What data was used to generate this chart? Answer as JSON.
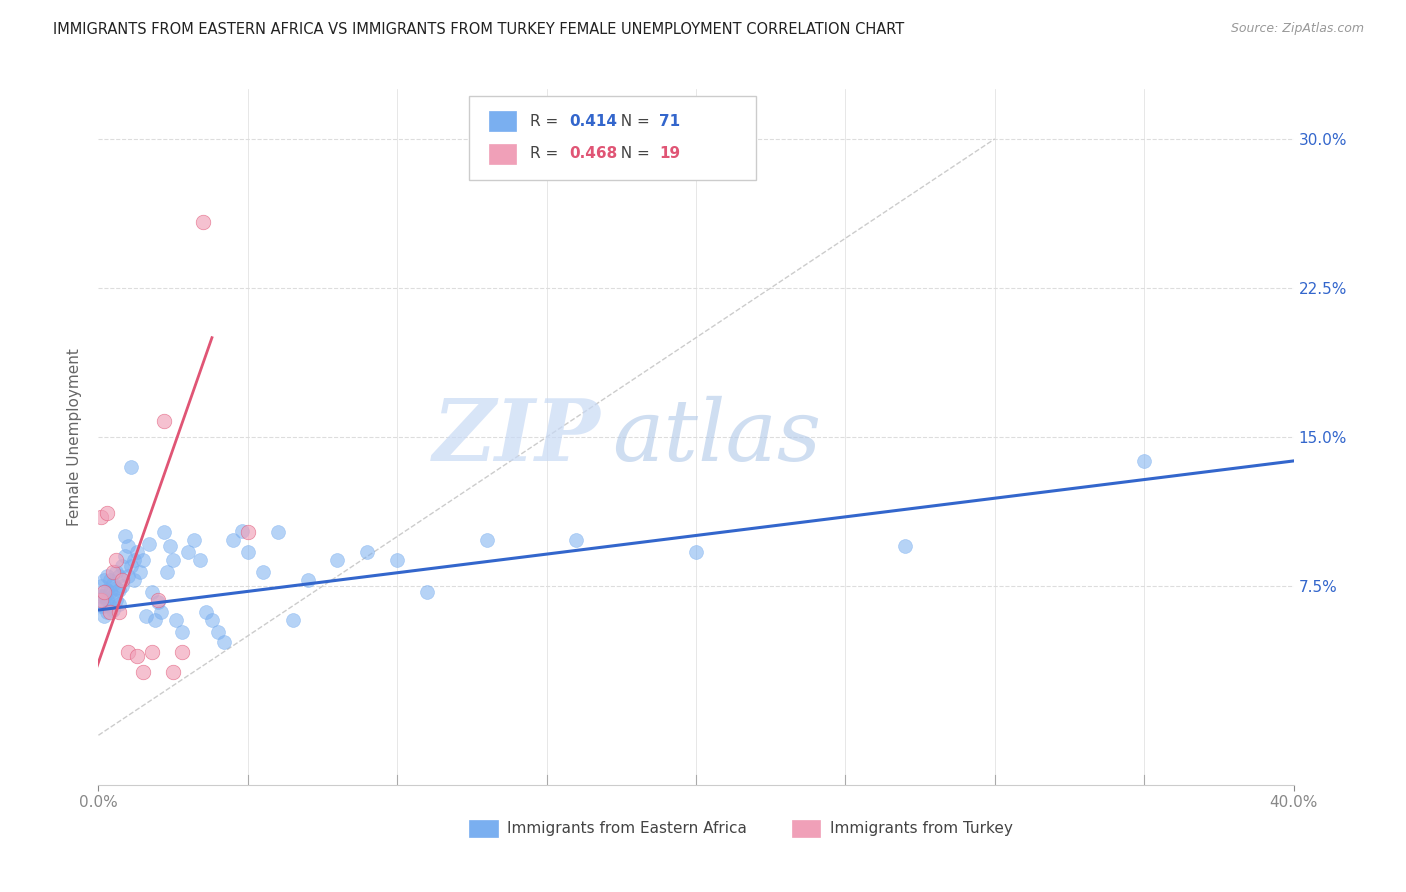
{
  "title": "IMMIGRANTS FROM EASTERN AFRICA VS IMMIGRANTS FROM TURKEY FEMALE UNEMPLOYMENT CORRELATION CHART",
  "source": "Source: ZipAtlas.com",
  "ylabel": "Female Unemployment",
  "y_tick_labels": [
    "7.5%",
    "15.0%",
    "22.5%",
    "30.0%"
  ],
  "y_tick_values": [
    0.075,
    0.15,
    0.225,
    0.3
  ],
  "xlim": [
    0.0,
    0.4
  ],
  "ylim": [
    -0.025,
    0.325
  ],
  "blue_color": "#7aaff0",
  "blue_color_dark": "#3366cc",
  "pink_color": "#f0a0b8",
  "pink_color_dark": "#e05575",
  "legend_blue_R": "0.414",
  "legend_blue_N": "71",
  "legend_pink_R": "0.468",
  "legend_pink_N": "19",
  "watermark_zip": "ZIP",
  "watermark_atlas": "atlas",
  "blue_scatter_x": [
    0.001,
    0.001,
    0.001,
    0.002,
    0.002,
    0.002,
    0.002,
    0.003,
    0.003,
    0.003,
    0.003,
    0.004,
    0.004,
    0.004,
    0.005,
    0.005,
    0.005,
    0.006,
    0.006,
    0.006,
    0.007,
    0.007,
    0.007,
    0.008,
    0.008,
    0.009,
    0.009,
    0.01,
    0.01,
    0.011,
    0.011,
    0.012,
    0.012,
    0.013,
    0.014,
    0.015,
    0.016,
    0.017,
    0.018,
    0.019,
    0.02,
    0.021,
    0.022,
    0.023,
    0.024,
    0.025,
    0.026,
    0.028,
    0.03,
    0.032,
    0.034,
    0.036,
    0.038,
    0.04,
    0.042,
    0.045,
    0.048,
    0.05,
    0.055,
    0.06,
    0.065,
    0.07,
    0.08,
    0.09,
    0.1,
    0.11,
    0.13,
    0.16,
    0.2,
    0.27,
    0.35
  ],
  "blue_scatter_y": [
    0.065,
    0.07,
    0.075,
    0.06,
    0.065,
    0.07,
    0.078,
    0.062,
    0.068,
    0.073,
    0.08,
    0.065,
    0.072,
    0.078,
    0.063,
    0.07,
    0.076,
    0.068,
    0.074,
    0.082,
    0.066,
    0.073,
    0.08,
    0.075,
    0.085,
    0.09,
    0.1,
    0.08,
    0.095,
    0.085,
    0.135,
    0.088,
    0.078,
    0.092,
    0.082,
    0.088,
    0.06,
    0.096,
    0.072,
    0.058,
    0.067,
    0.062,
    0.102,
    0.082,
    0.095,
    0.088,
    0.058,
    0.052,
    0.092,
    0.098,
    0.088,
    0.062,
    0.058,
    0.052,
    0.047,
    0.098,
    0.103,
    0.092,
    0.082,
    0.102,
    0.058,
    0.078,
    0.088,
    0.092,
    0.088,
    0.072,
    0.098,
    0.098,
    0.092,
    0.095,
    0.138
  ],
  "pink_scatter_x": [
    0.001,
    0.001,
    0.002,
    0.003,
    0.004,
    0.005,
    0.006,
    0.007,
    0.008,
    0.01,
    0.013,
    0.015,
    0.018,
    0.02,
    0.022,
    0.025,
    0.028,
    0.035,
    0.05
  ],
  "pink_scatter_y": [
    0.068,
    0.11,
    0.072,
    0.112,
    0.062,
    0.082,
    0.088,
    0.062,
    0.078,
    0.042,
    0.04,
    0.032,
    0.042,
    0.068,
    0.158,
    0.032,
    0.042,
    0.258,
    0.102
  ],
  "blue_trend_x": [
    0.0,
    0.4
  ],
  "blue_trend_y_start": 0.063,
  "blue_trend_y_end": 0.138,
  "pink_trend_x": [
    -0.002,
    0.038
  ],
  "pink_trend_y_start": 0.028,
  "pink_trend_y_end": 0.2,
  "ref_line_x": [
    0.0,
    0.3
  ],
  "ref_line_y": [
    0.0,
    0.3
  ],
  "x_minor_ticks": [
    0.05,
    0.1,
    0.15,
    0.2,
    0.25,
    0.3,
    0.35
  ]
}
